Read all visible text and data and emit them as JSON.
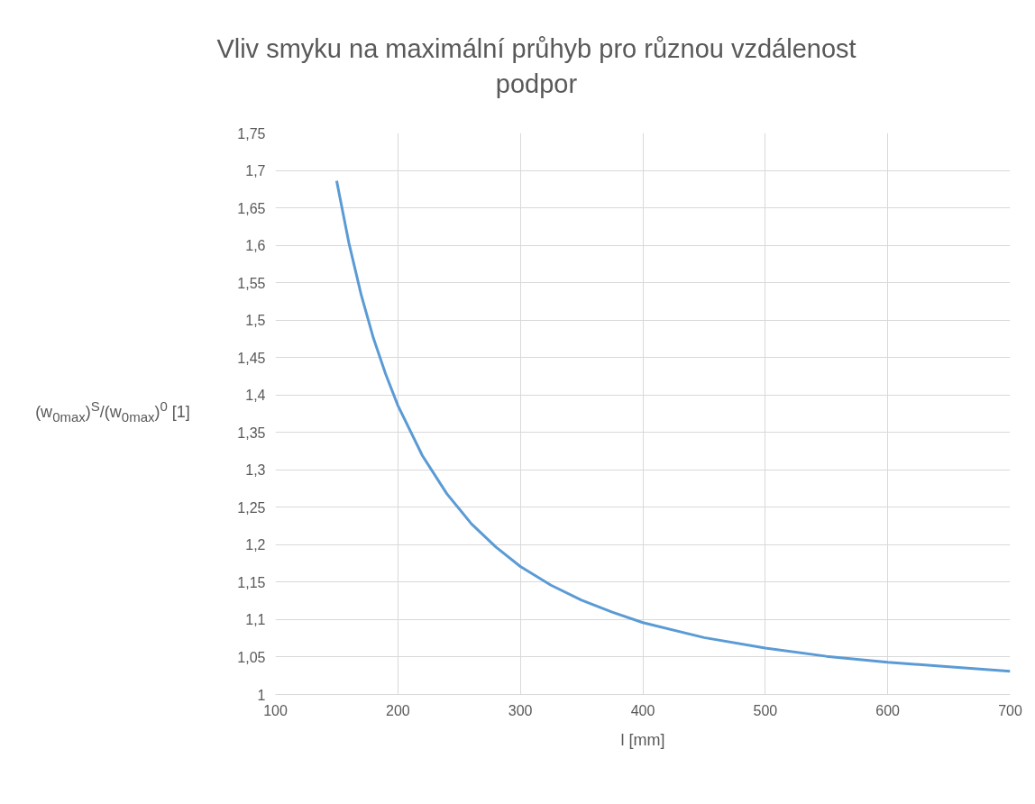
{
  "chart_data": {
    "type": "line",
    "title": "Vliv smyku na maximální průhyb pro různou vzdálenost podpor",
    "xlabel": "l [mm]",
    "ylabel": "(w$_{0max}$)$^{S}$/(w$_{0max}$)$^{0}$ [1]",
    "x": [
      150,
      160,
      170,
      180,
      190,
      200,
      220,
      240,
      260,
      280,
      300,
      325,
      350,
      375,
      400,
      450,
      500,
      550,
      600,
      650,
      700
    ],
    "series": [
      {
        "color": "#5b9bd5",
        "values": [
          1.686,
          1.603,
          1.534,
          1.476,
          1.428,
          1.386,
          1.319,
          1.268,
          1.228,
          1.197,
          1.171,
          1.146,
          1.126,
          1.11,
          1.096,
          1.076,
          1.062,
          1.051,
          1.043,
          1.037,
          1.031
        ]
      }
    ],
    "xlim": [
      100,
      700
    ],
    "xticks": [
      100,
      200,
      300,
      400,
      500,
      600,
      700
    ],
    "ylim": [
      1,
      1.75
    ],
    "yticks": [
      1,
      {
        "value": 1.05,
        "label": "1,05"
      },
      {
        "value": 1.1,
        "label": "1,1"
      },
      {
        "value": 1.15,
        "label": "1,15"
      },
      {
        "value": 1.2,
        "label": "1,2"
      },
      {
        "value": 1.25,
        "label": "1,25"
      },
      {
        "value": 1.3,
        "label": "1,3"
      },
      {
        "value": 1.35,
        "label": "1,35"
      },
      {
        "value": 1.4,
        "label": "1,4"
      },
      {
        "value": 1.45,
        "label": "1,45"
      },
      {
        "value": 1.5,
        "label": "1,5"
      },
      {
        "value": 1.55,
        "label": "1,55"
      },
      {
        "value": 1.6,
        "label": "1,6"
      },
      {
        "value": 1.65,
        "label": "1,65"
      },
      {
        "value": 1.7,
        "label": "1,7"
      },
      {
        "value": 1.75,
        "label": "1,75"
      }
    ],
    "grid": true,
    "marker": "none",
    "line_style": "solid"
  }
}
